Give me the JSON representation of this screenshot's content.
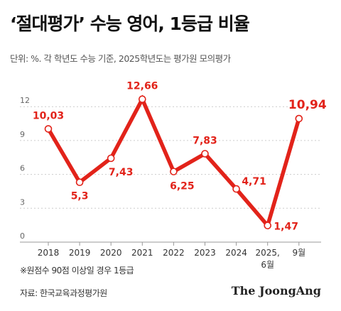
{
  "title": "‘절대평가’ 수능 영어, 1등급 비율",
  "subtitle": "단위: %. 각 학년도 수능 기준, 2025학년도는 평가원 모의평가",
  "footnote": "※원점수 90점 이상일 경우 1등급",
  "source": "자료: 한국교육과정평가원",
  "brand": "The JoongAng",
  "colors": {
    "line": "#e2231a",
    "label": "#e2231a",
    "grid": "#cccccc"
  },
  "chart_data": {
    "type": "line",
    "categories": [
      "2018",
      "2019",
      "2020",
      "2021",
      "2022",
      "2023",
      "2024",
      "2025,",
      "9월"
    ],
    "category_sublabels": [
      "",
      "",
      "",
      "",
      "",
      "",
      "",
      "6월",
      ""
    ],
    "values": [
      10.03,
      5.3,
      7.43,
      12.66,
      6.25,
      7.83,
      4.71,
      1.47,
      10.94
    ],
    "data_labels": [
      "10,03",
      "5,3",
      "7,43",
      "12,66",
      "6,25",
      "7,83",
      "4,71",
      "1,47",
      "10,94"
    ],
    "yticks": [
      "0",
      "3",
      "6",
      "9",
      "12"
    ],
    "ylim": [
      0,
      13.5
    ],
    "grid": "horizontal dashed",
    "xlabel": "",
    "ylabel": ""
  }
}
